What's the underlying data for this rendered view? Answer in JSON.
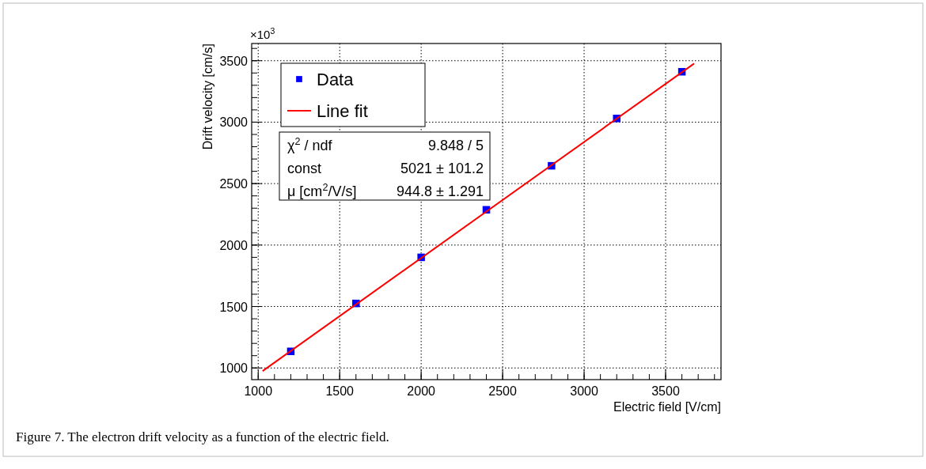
{
  "chart_data": {
    "type": "scatter",
    "xlabel": "Electric field [V/cm]",
    "ylabel": "Drift velocity [cm/s]",
    "x": [
      1200,
      1600,
      2000,
      2400,
      2800,
      3200,
      3600
    ],
    "series": [
      {
        "name": "Data",
        "color": "#0000ff",
        "marker": "square",
        "values": [
          1135,
          1525,
          1900,
          2287,
          2645,
          3030,
          3410
        ]
      },
      {
        "name": "Line fit",
        "type": "line",
        "color": "#ff0000",
        "x": [
          1027,
          3675
        ],
        "values": [
          975,
          3477
        ]
      }
    ],
    "xlim": [
      960,
      3840
    ],
    "xticks": [
      1000,
      1500,
      2000,
      2500,
      3000,
      3500
    ],
    "ylim": [
      905,
      3640
    ],
    "yticks": [
      1000,
      1500,
      2000,
      2500,
      3000,
      3500
    ],
    "grid": true,
    "legend": "top left",
    "annotations": [
      "×10$^{3}$",
      "χ$^{2}$ / ndf",
      "9.848 / 5",
      "const",
      "5021 ± 101.2",
      "μ [cm$^{2}$/V/s]",
      "944.8 ± 1.291",
      "Figure 7. The electron drift velocity as a function of the electric field."
    ]
  }
}
